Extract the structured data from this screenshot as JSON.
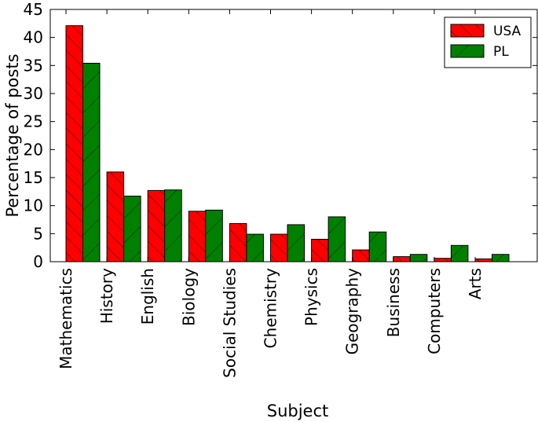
{
  "chart_data": {
    "type": "bar",
    "title": "",
    "xlabel": "Subject",
    "ylabel": "Percentage of posts",
    "ylim": [
      0,
      45
    ],
    "yticks": [
      0,
      5,
      10,
      15,
      20,
      25,
      30,
      35,
      40,
      45
    ],
    "ytick_labels": [
      "0",
      "5",
      "10",
      "15",
      "20",
      "25",
      "30",
      "35",
      "40",
      "45"
    ],
    "categories": [
      "Mathematics",
      "History",
      "English",
      "Biology",
      "Social Studies",
      "Chemistry",
      "Physics",
      "Geography",
      "Business",
      "Computers",
      "Arts"
    ],
    "series": [
      {
        "name": "USA",
        "color": "#ff0000",
        "hatch": "forward-diagonal",
        "values": [
          42.1,
          16.0,
          12.7,
          9.0,
          6.8,
          4.9,
          4.0,
          2.1,
          0.9,
          0.6,
          0.5
        ]
      },
      {
        "name": "PL",
        "color": "#008000",
        "hatch": "back-diagonal",
        "values": [
          35.4,
          11.7,
          12.8,
          9.2,
          4.9,
          6.6,
          8.0,
          5.3,
          1.3,
          2.9,
          1.3
        ]
      }
    ],
    "legend_position": "top-right",
    "grid": false
  }
}
